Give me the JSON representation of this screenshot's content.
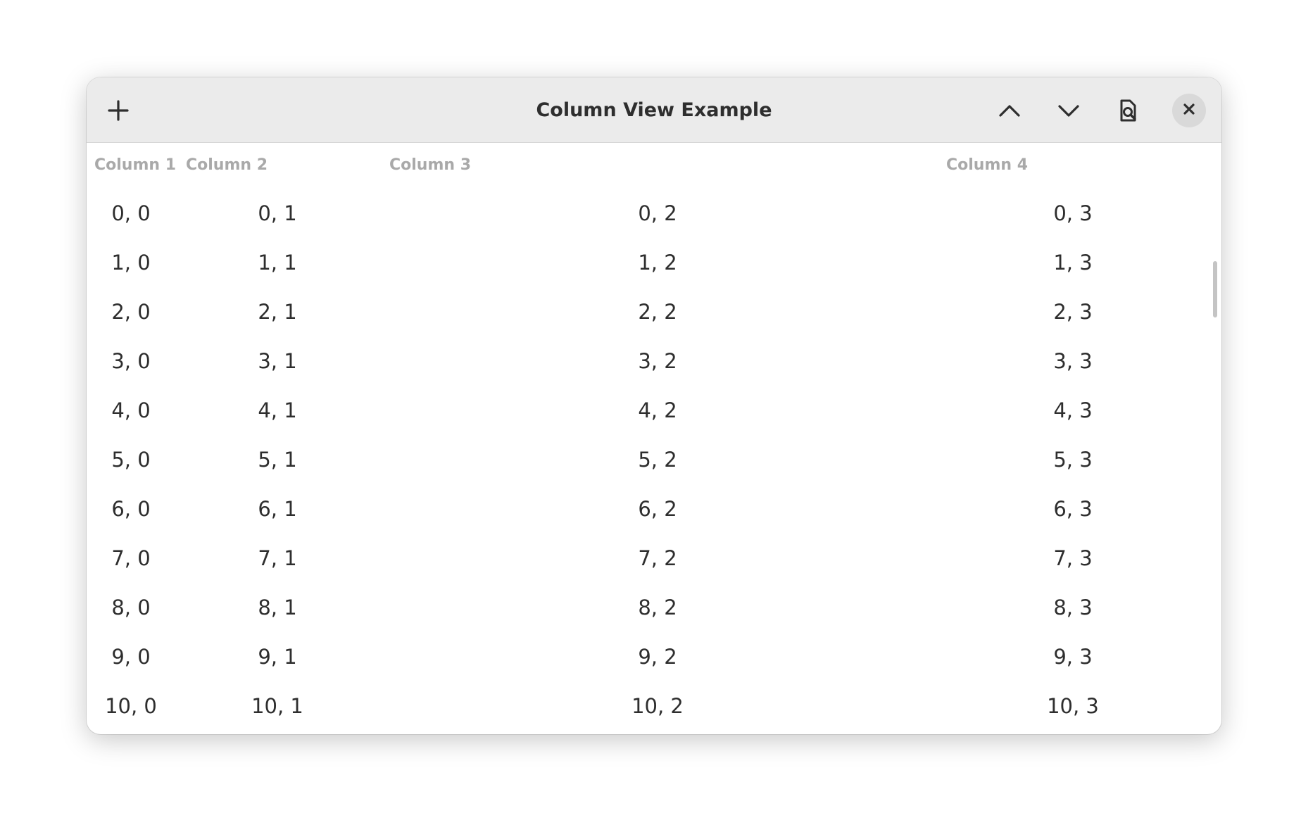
{
  "window": {
    "title": "Column View Example"
  },
  "headerbar": {
    "add_icon": "plus-icon",
    "up_icon": "chevron-up-icon",
    "down_icon": "chevron-down-icon",
    "find_icon": "document-search-icon",
    "close_icon": "close-icon"
  },
  "columns": [
    "Column 1",
    "Column 2",
    "Column 3",
    "Column 4"
  ],
  "rows": [
    [
      "0, 0",
      "0, 1",
      "0, 2",
      "0, 3"
    ],
    [
      "1, 0",
      "1, 1",
      "1, 2",
      "1, 3"
    ],
    [
      "2, 0",
      "2, 1",
      "2, 2",
      "2, 3"
    ],
    [
      "3, 0",
      "3, 1",
      "3, 2",
      "3, 3"
    ],
    [
      "4, 0",
      "4, 1",
      "4, 2",
      "4, 3"
    ],
    [
      "5, 0",
      "5, 1",
      "5, 2",
      "5, 3"
    ],
    [
      "6, 0",
      "6, 1",
      "6, 2",
      "6, 3"
    ],
    [
      "7, 0",
      "7, 1",
      "7, 2",
      "7, 3"
    ],
    [
      "8, 0",
      "8, 1",
      "8, 2",
      "8, 3"
    ],
    [
      "9, 0",
      "9, 1",
      "9, 2",
      "9, 3"
    ],
    [
      "10, 0",
      "10, 1",
      "10, 2",
      "10, 3"
    ]
  ],
  "colors": {
    "headerbar": "#ebebeb",
    "text": "#2e2e2e",
    "column_header": "#a9a9a9",
    "close_button_bg": "#d9d9d9"
  }
}
